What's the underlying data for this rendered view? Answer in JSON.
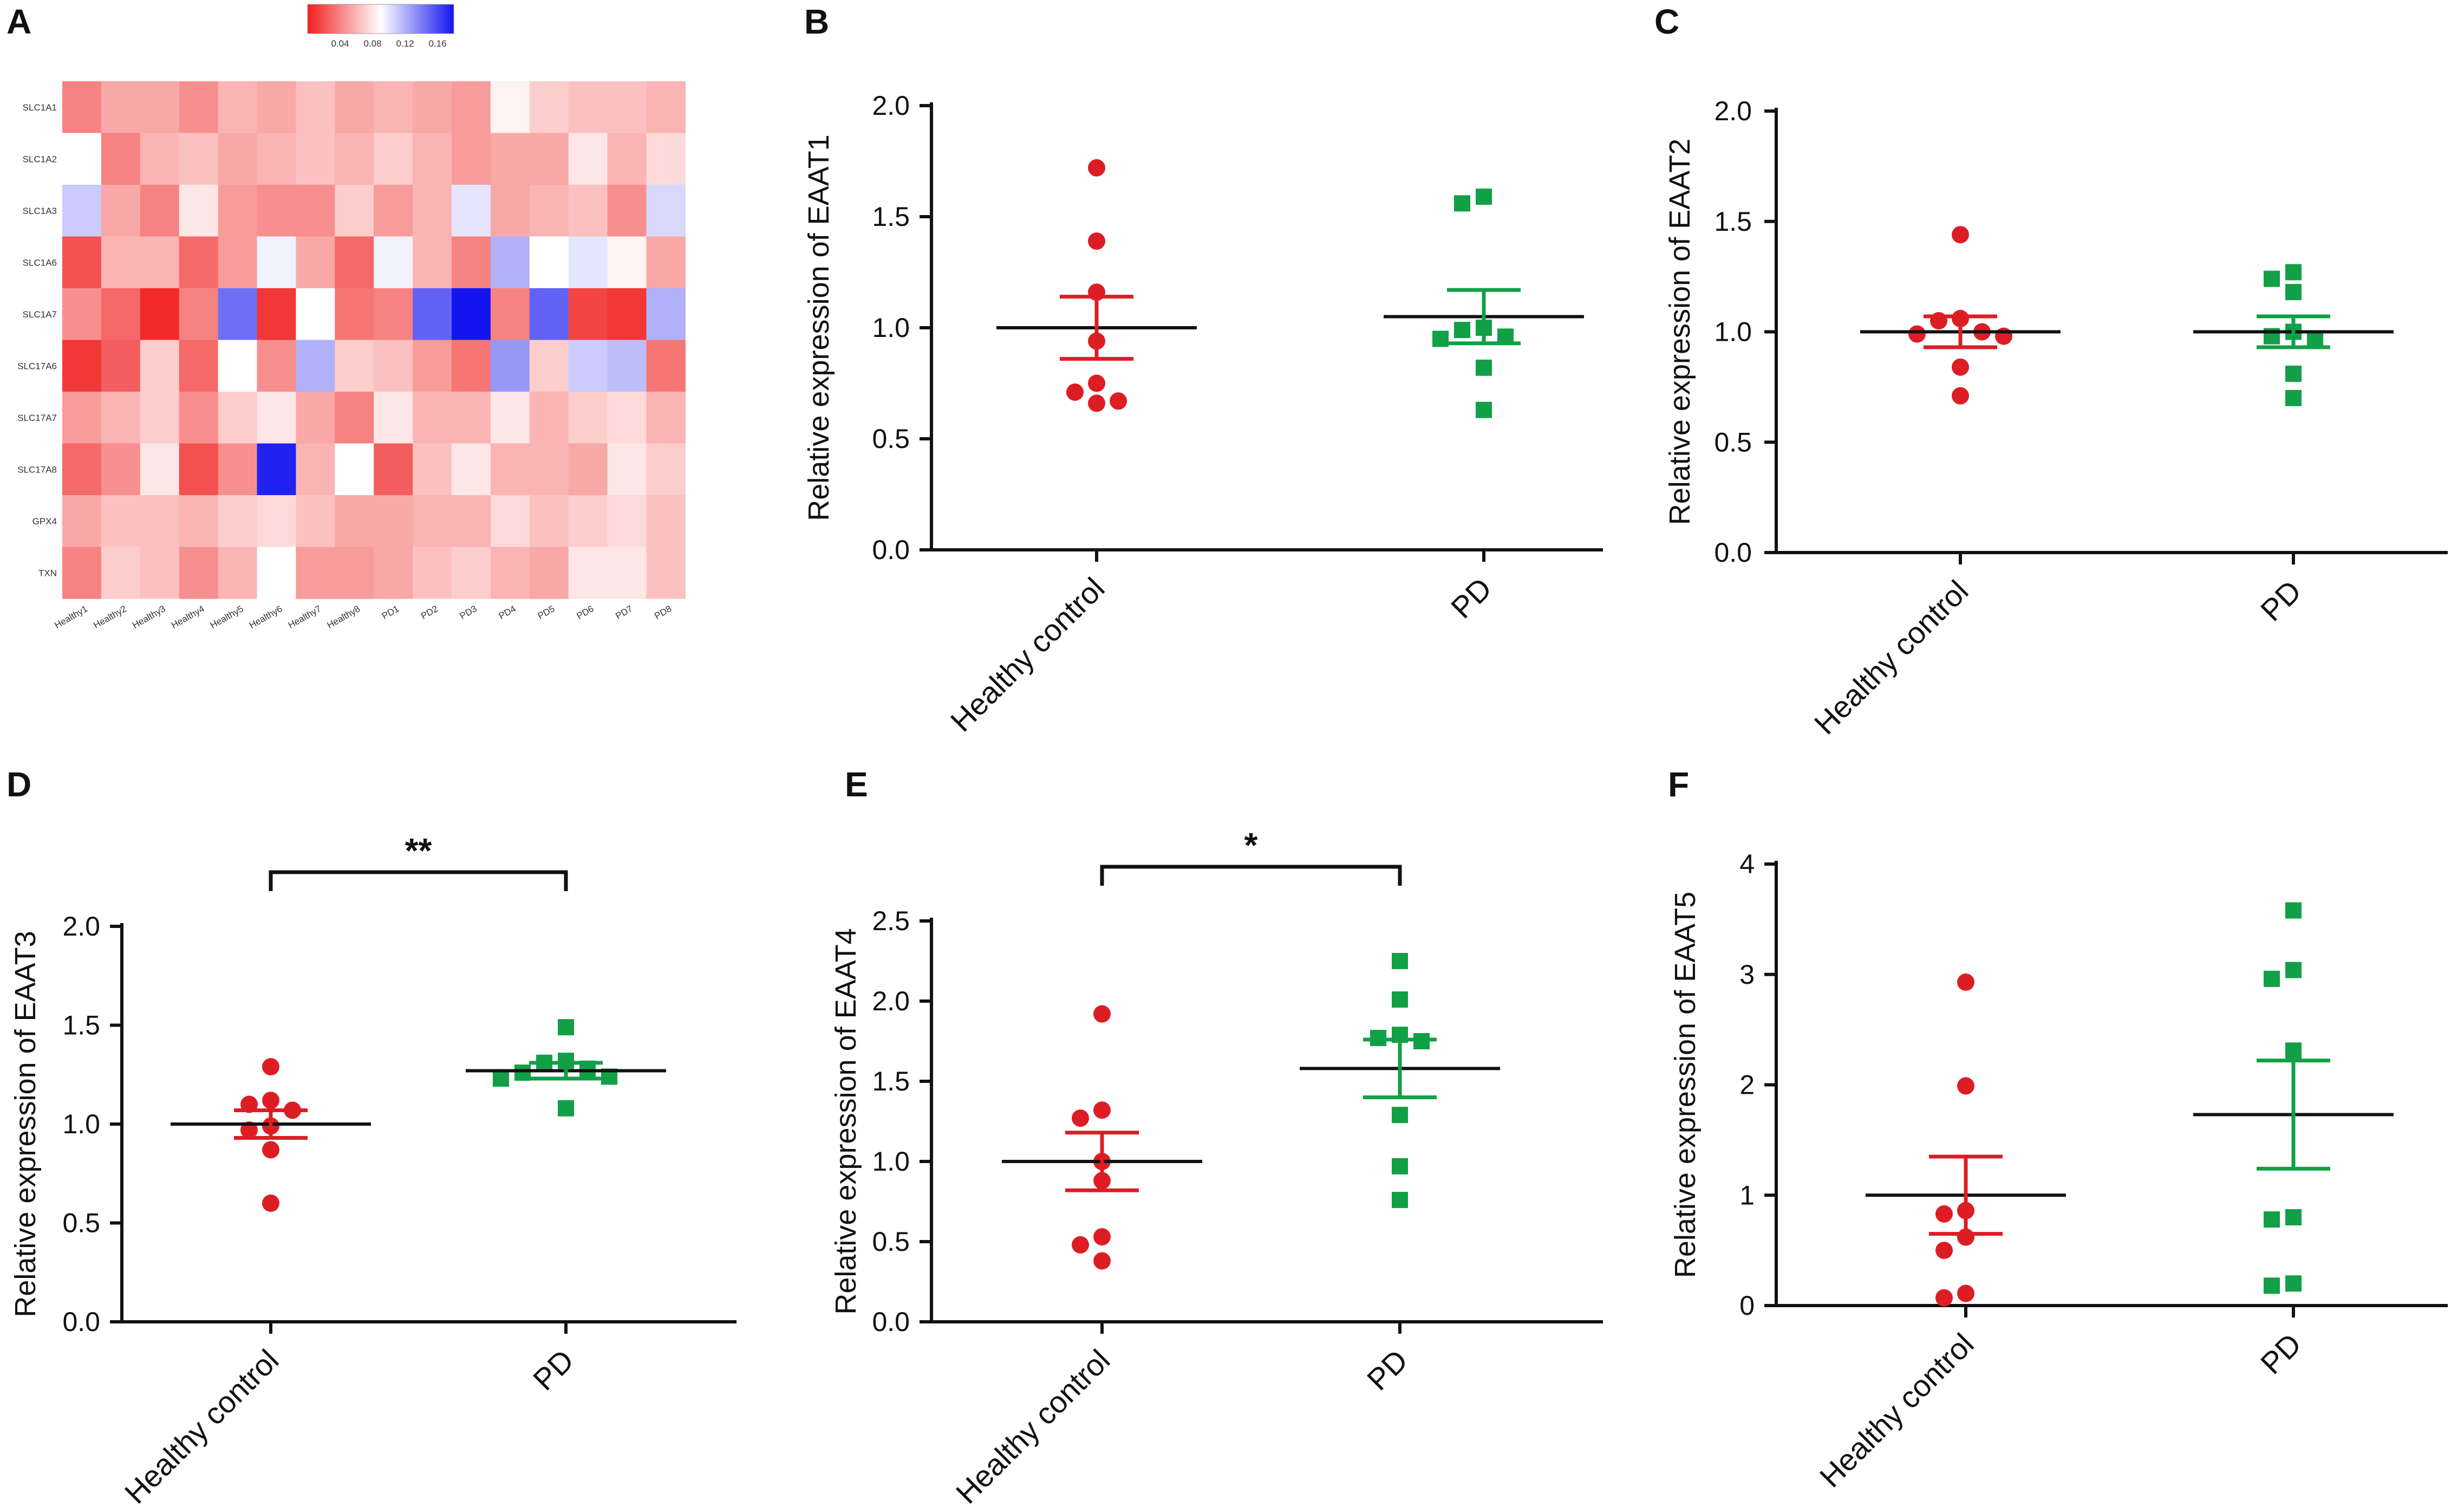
{
  "colors": {
    "healthy": "#dc1e24",
    "pd": "#12a046",
    "axis": "#111111",
    "hm_low": "#f01e1e",
    "hm_mid": "#ffffff",
    "hm_high": "#1414f0"
  },
  "chart_data": [
    {
      "panel": "A",
      "type": "heatmap",
      "title": "",
      "rows": [
        "SLC1A1",
        "SLC1A2",
        "SLC1A3",
        "SLC1A6",
        "SLC1A7",
        "SLC17A6",
        "SLC17A7",
        "SLC17A8",
        "GPX4",
        "TXN"
      ],
      "columns": [
        "Healthy1",
        "Healthy2",
        "Healthy3",
        "Healthy4",
        "Healthy5",
        "Healthy6",
        "Healthy7",
        "Healthy8",
        "PD1",
        "PD2",
        "PD3",
        "PD4",
        "PD5",
        "PD6",
        "PD7",
        "PD8"
      ],
      "colorbar": {
        "ticks": [
          "0.04",
          "0.08",
          "0.12",
          "0.16"
        ],
        "range": [
          0.0,
          0.18
        ],
        "legend_position": "top-center"
      },
      "values": [
        [
          0.04,
          0.055,
          0.055,
          0.045,
          0.06,
          0.055,
          0.065,
          0.055,
          0.06,
          0.055,
          0.05,
          0.085,
          0.07,
          0.065,
          0.065,
          0.06
        ],
        [
          0.09,
          0.04,
          0.06,
          0.065,
          0.055,
          0.06,
          0.065,
          0.06,
          0.07,
          0.06,
          0.05,
          0.055,
          0.055,
          0.08,
          0.06,
          0.075
        ],
        [
          0.11,
          0.055,
          0.04,
          0.08,
          0.05,
          0.045,
          0.045,
          0.07,
          0.05,
          0.06,
          0.1,
          0.055,
          0.06,
          0.065,
          0.045,
          0.105
        ],
        [
          0.02,
          0.06,
          0.06,
          0.03,
          0.05,
          0.095,
          0.055,
          0.03,
          0.095,
          0.06,
          0.04,
          0.12,
          0.09,
          0.1,
          0.085,
          0.055
        ],
        [
          0.045,
          0.03,
          0.005,
          0.04,
          0.145,
          0.01,
          0.09,
          0.035,
          0.04,
          0.15,
          0.18,
          0.04,
          0.15,
          0.015,
          0.01,
          0.12
        ],
        [
          0.01,
          0.025,
          0.07,
          0.03,
          0.09,
          0.045,
          0.12,
          0.07,
          0.065,
          0.05,
          0.035,
          0.13,
          0.07,
          0.11,
          0.115,
          0.035
        ],
        [
          0.05,
          0.06,
          0.07,
          0.045,
          0.07,
          0.08,
          0.055,
          0.04,
          0.08,
          0.06,
          0.06,
          0.08,
          0.06,
          0.07,
          0.075,
          0.06
        ],
        [
          0.03,
          0.045,
          0.08,
          0.02,
          0.045,
          0.175,
          0.06,
          0.09,
          0.025,
          0.065,
          0.08,
          0.06,
          0.06,
          0.055,
          0.08,
          0.07
        ],
        [
          0.055,
          0.065,
          0.065,
          0.06,
          0.07,
          0.075,
          0.065,
          0.055,
          0.055,
          0.06,
          0.06,
          0.075,
          0.065,
          0.07,
          0.075,
          0.065
        ],
        [
          0.04,
          0.07,
          0.065,
          0.045,
          0.06,
          0.09,
          0.05,
          0.05,
          0.055,
          0.065,
          0.07,
          0.06,
          0.055,
          0.08,
          0.08,
          0.065
        ]
      ]
    },
    {
      "panel": "B",
      "type": "scatter",
      "ylabel": "Relative expression of EAAT1",
      "ylim": [
        0,
        2.0
      ],
      "yticks": [
        "0.0",
        "0.5",
        "1.0",
        "1.5",
        "2.0"
      ],
      "yticks_values": [
        0,
        0.5,
        1.0,
        1.5,
        2.0
      ],
      "categories": [
        "Healthy control",
        "PD"
      ],
      "series": [
        {
          "name": "Healthy control",
          "marker": "circle",
          "values": [
            1.72,
            1.39,
            1.16,
            0.94,
            0.75,
            0.71,
            0.67,
            0.66
          ],
          "mean": 1.0,
          "sem": 0.14
        },
        {
          "name": "PD",
          "marker": "square",
          "values": [
            1.59,
            1.56,
            1.0,
            0.99,
            0.96,
            0.95,
            0.82,
            0.63
          ],
          "mean": 1.05,
          "sem": 0.12
        }
      ],
      "significance": ""
    },
    {
      "panel": "C",
      "type": "scatter",
      "ylabel": "Relative expression of EAAT2",
      "ylim": [
        0,
        2.0
      ],
      "yticks": [
        "0.0",
        "0.5",
        "1.0",
        "1.5",
        "2.0"
      ],
      "yticks_values": [
        0,
        0.5,
        1.0,
        1.5,
        2.0
      ],
      "categories": [
        "Healthy control",
        "PD"
      ],
      "series": [
        {
          "name": "Healthy control",
          "marker": "circle",
          "values": [
            1.44,
            1.06,
            1.05,
            1.0,
            0.99,
            0.98,
            0.84,
            0.71
          ],
          "mean": 1.0,
          "sem": 0.07
        },
        {
          "name": "PD",
          "marker": "square",
          "values": [
            1.27,
            1.24,
            1.18,
            1.0,
            0.98,
            0.96,
            0.81,
            0.7
          ],
          "mean": 1.0,
          "sem": 0.07
        }
      ],
      "significance": ""
    },
    {
      "panel": "D",
      "type": "scatter",
      "ylabel": "Relative expression of EAAT3",
      "ylim": [
        0,
        2.0
      ],
      "yticks": [
        "0.0",
        "0.5",
        "1.0",
        "1.5",
        "2.0"
      ],
      "yticks_values": [
        0,
        0.5,
        1.0,
        1.5,
        2.0
      ],
      "categories": [
        "Healthy control",
        "PD"
      ],
      "series": [
        {
          "name": "Healthy control",
          "marker": "circle",
          "values": [
            1.29,
            1.12,
            1.1,
            1.07,
            0.99,
            0.97,
            0.87,
            0.6
          ],
          "mean": 1.0,
          "sem": 0.07
        },
        {
          "name": "PD",
          "marker": "square",
          "values": [
            1.49,
            1.32,
            1.31,
            1.28,
            1.26,
            1.24,
            1.23,
            1.08
          ],
          "mean": 1.27,
          "sem": 0.04
        },
        {
          "name": "",
          "marker": "none",
          "values": []
        }
      ],
      "significance": "**"
    },
    {
      "panel": "E",
      "type": "scatter",
      "ylabel": "Relative expression of EAAT4",
      "ylim": [
        0,
        2.5
      ],
      "yticks": [
        "0.0",
        "0.5",
        "1.0",
        "1.5",
        "2.0",
        "2.5"
      ],
      "yticks_values": [
        0,
        0.5,
        1.0,
        1.5,
        2.0,
        2.5
      ],
      "categories": [
        "Healthy control",
        "PD"
      ],
      "series": [
        {
          "name": "Healthy control",
          "marker": "circle",
          "values": [
            1.92,
            1.32,
            1.27,
            1.0,
            0.88,
            0.53,
            0.48,
            0.38
          ],
          "mean": 1.0,
          "sem": 0.18
        },
        {
          "name": "PD",
          "marker": "square",
          "values": [
            2.25,
            2.01,
            1.79,
            1.77,
            1.75,
            1.29,
            0.97,
            0.76
          ],
          "mean": 1.58,
          "sem": 0.18
        }
      ],
      "significance": "*"
    },
    {
      "panel": "F",
      "type": "scatter",
      "ylabel": "Relative expression of EAAT5",
      "ylim": [
        0,
        4
      ],
      "yticks": [
        "0",
        "1",
        "2",
        "3",
        "4"
      ],
      "yticks_values": [
        0,
        1,
        2,
        3,
        4
      ],
      "categories": [
        "Healthy control",
        "PD"
      ],
      "series": [
        {
          "name": "Healthy control",
          "marker": "circle",
          "values": [
            2.93,
            1.99,
            0.86,
            0.83,
            0.62,
            0.5,
            0.11,
            0.07
          ],
          "mean": 1.0,
          "sem": 0.35
        },
        {
          "name": "PD",
          "marker": "square",
          "values": [
            3.58,
            3.04,
            2.96,
            2.31,
            0.8,
            0.78,
            0.2,
            0.18
          ],
          "mean": 1.73,
          "sem": 0.49
        }
      ],
      "significance": ""
    }
  ]
}
